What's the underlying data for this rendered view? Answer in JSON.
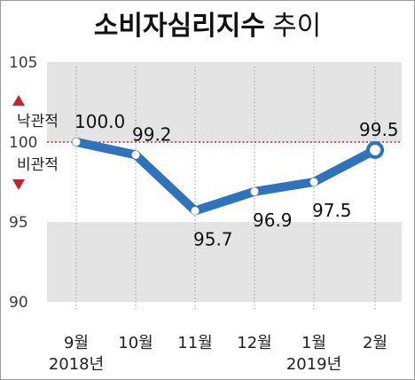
{
  "title": {
    "main": "소비자심리지수",
    "sub": "추이"
  },
  "chart_data": {
    "type": "line",
    "title": "소비자심리지수 추이",
    "categories": [
      "9월",
      "10월",
      "11월",
      "12월",
      "1월",
      "2월"
    ],
    "year_labels": [
      {
        "category": "9월",
        "text": "2018년"
      },
      {
        "category": "1월",
        "text": "2019년"
      }
    ],
    "series": [
      {
        "values": [
          100.0,
          99.2,
          95.7,
          96.9,
          97.5,
          99.5
        ]
      }
    ],
    "data_labels": [
      "100.0",
      "99.2",
      "95.7",
      "96.9",
      "97.5",
      "99.5"
    ],
    "ylim": [
      90,
      105
    ],
    "yticks": [
      90,
      95,
      100,
      105
    ],
    "reference_line": {
      "value": 100,
      "label": "100",
      "above": "낙관적",
      "below": "비관적"
    },
    "bands": [
      [
        100,
        105
      ],
      [
        90,
        95
      ]
    ],
    "grid": false,
    "colors": {
      "line": "#2f73bd",
      "band": "#e4e4e4",
      "reference": "#c0262d",
      "arrow": "#c0262d",
      "point": "#ffffff"
    }
  }
}
